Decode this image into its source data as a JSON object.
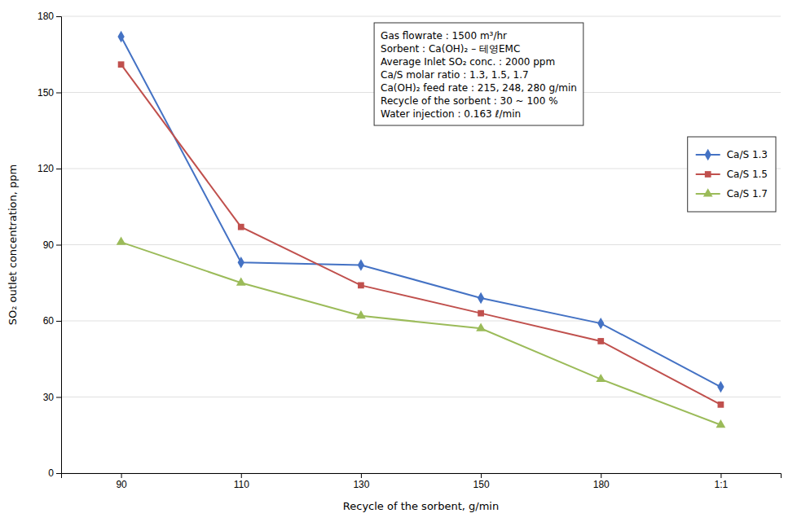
{
  "chart_data": {
    "type": "line",
    "categories": [
      "90",
      "110",
      "130",
      "150",
      "180",
      "1:1"
    ],
    "series": [
      {
        "name": "Ca/S 1.3",
        "color": "#4472C4",
        "marker": "diamond",
        "values": [
          172,
          83,
          82,
          69,
          59,
          34
        ]
      },
      {
        "name": "Ca/S 1.5",
        "color": "#C0504D",
        "marker": "square",
        "values": [
          161,
          97,
          74,
          63,
          52,
          27
        ]
      },
      {
        "name": "Ca/S 1.7",
        "color": "#9BBB59",
        "marker": "triangle",
        "values": [
          91,
          75,
          62,
          57,
          37,
          19
        ]
      }
    ],
    "xlabel": "Recycle of the sorbent, g/min",
    "ylabel": "SO₂ outlet concentration, ppm",
    "ylim": [
      0,
      180
    ],
    "yticks": [
      0,
      30,
      60,
      90,
      120,
      150,
      180
    ],
    "grid": true,
    "legend": "upper right",
    "annotations": [
      "Gas flowrate : 1500 m³/hr",
      "Sorbent : Ca(OH)₂ – 테영EMC",
      "Average Inlet SO₂ conc. : 2000 ppm",
      "Ca/S molar ratio : 1.3, 1.5, 1.7",
      "Ca(OH)₂ feed rate : 215, 248, 280 g/min",
      "Recycle of the sorbent : 30 ~ 100 %",
      "Water injection : 0.163 ℓ/min"
    ]
  }
}
